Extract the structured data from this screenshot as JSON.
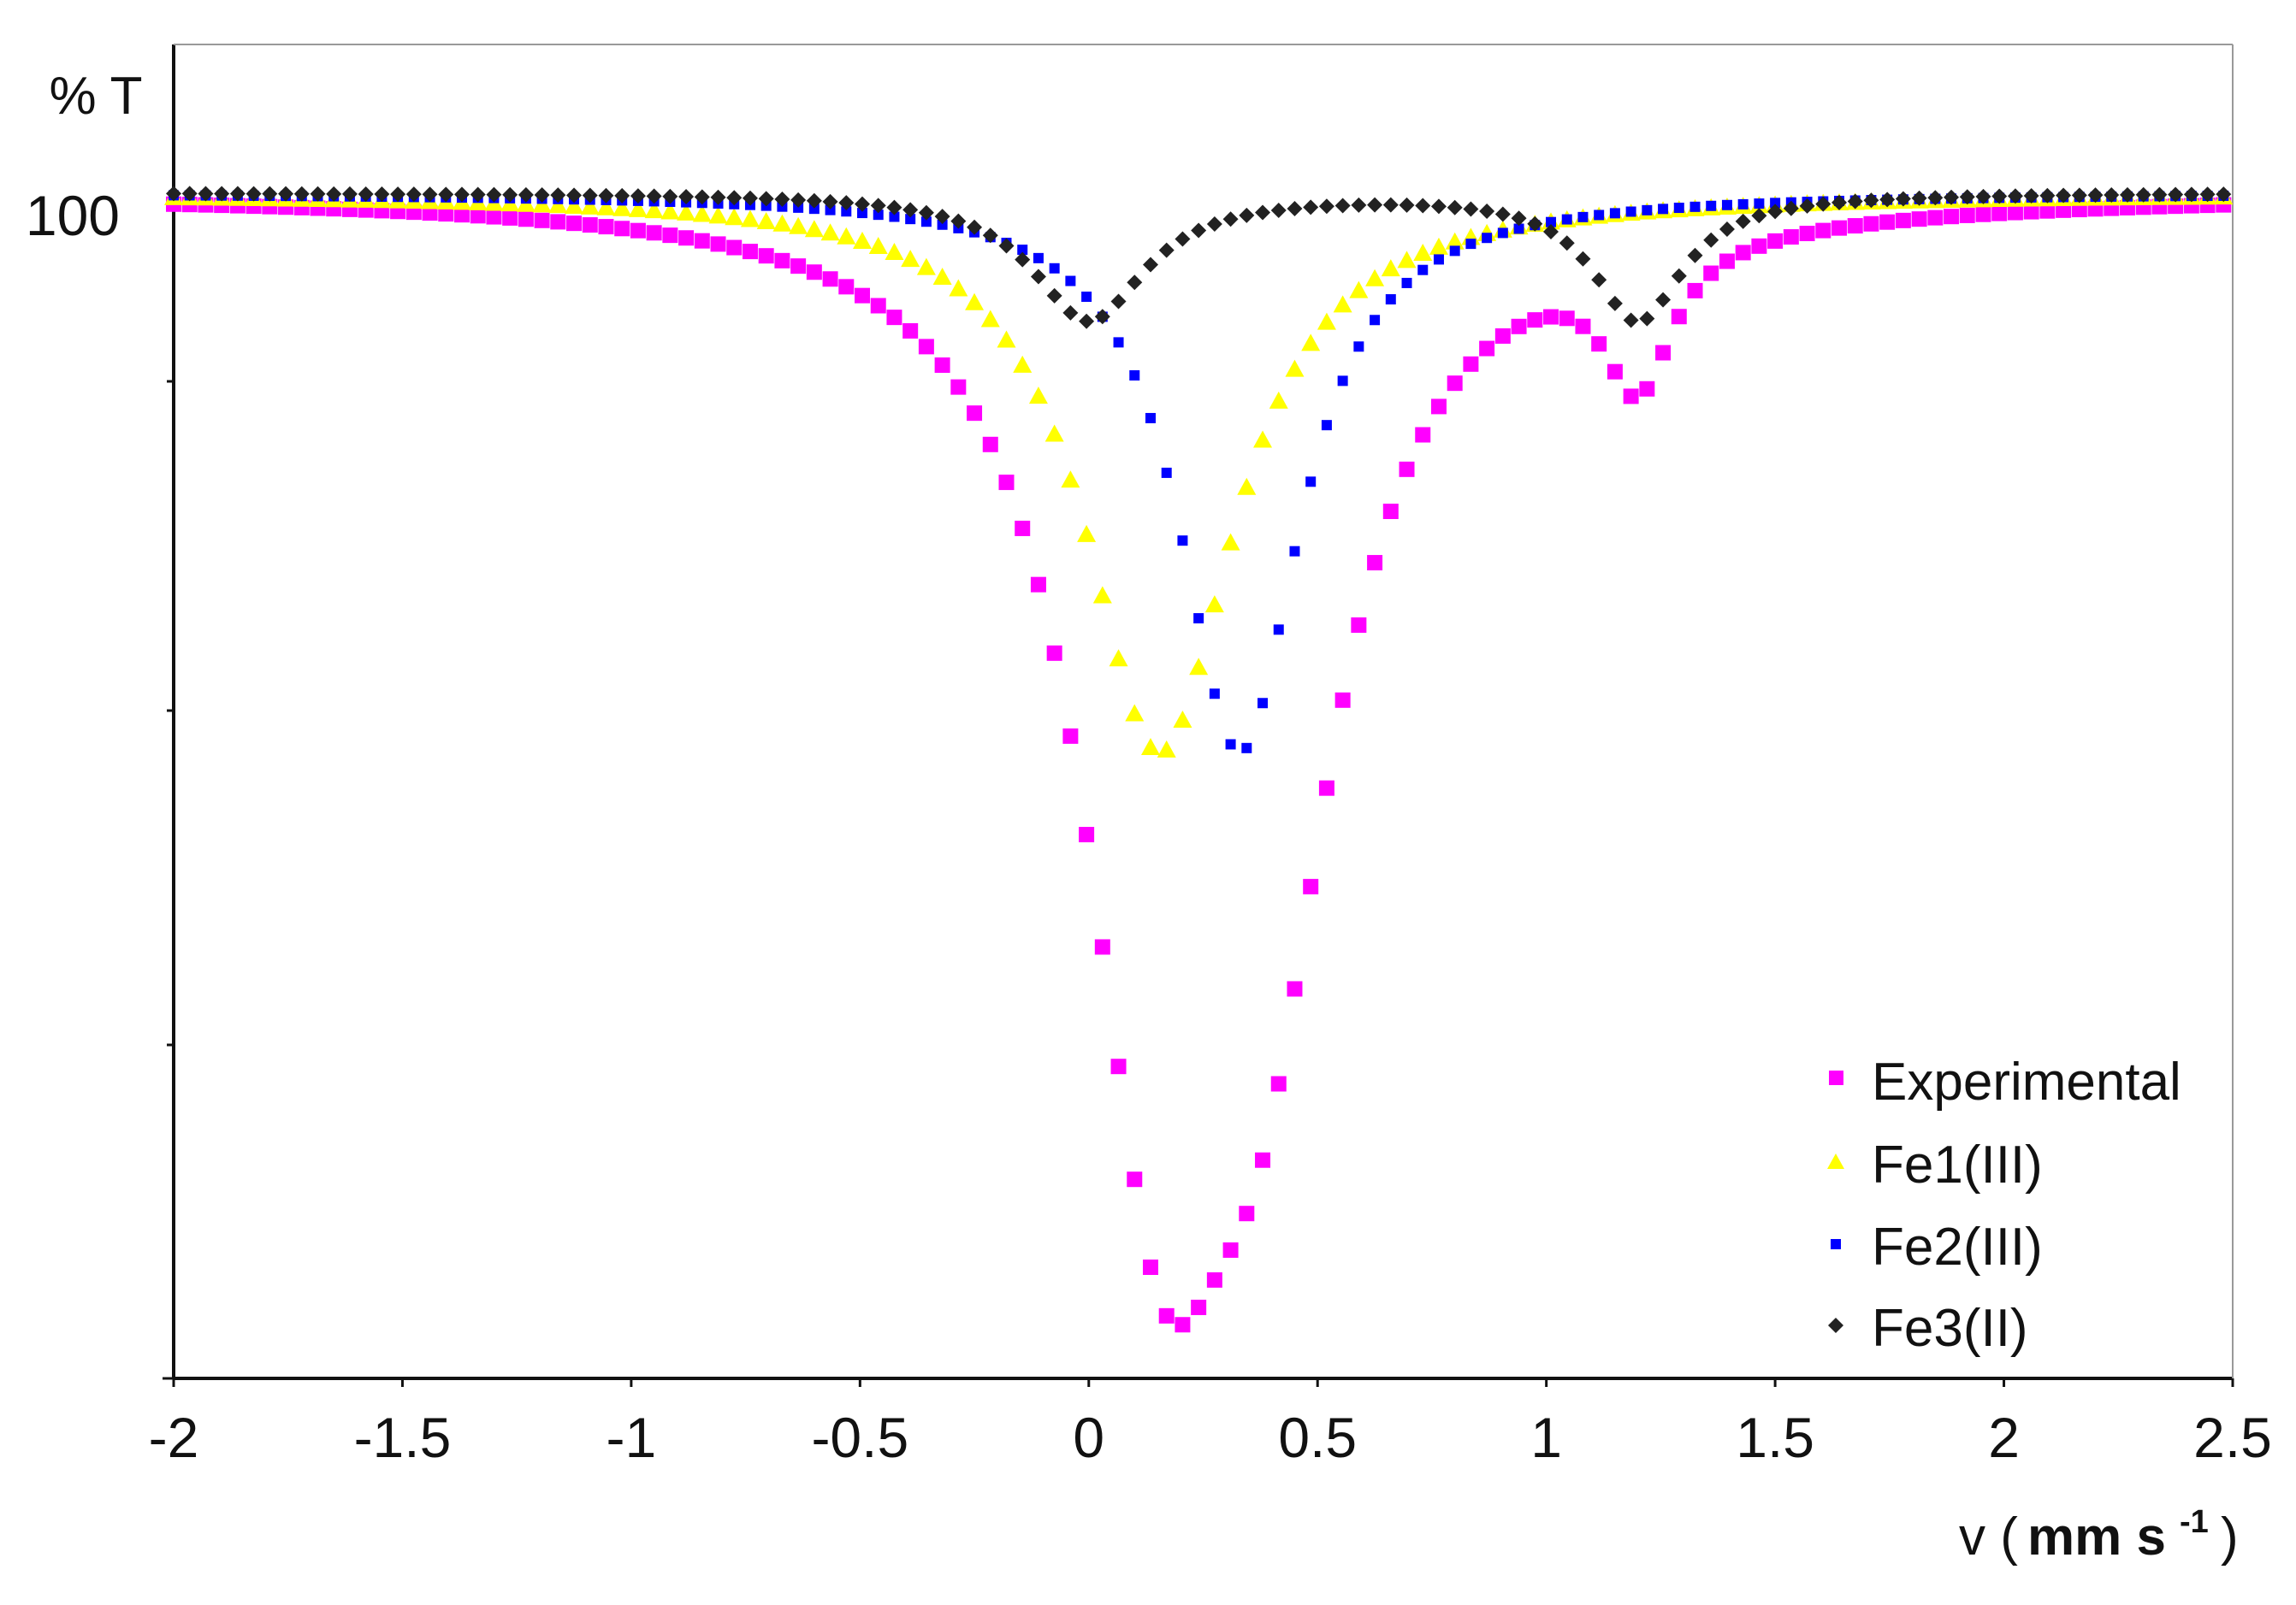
{
  "chart_data": {
    "type": "scatter",
    "title": "",
    "xlabel": "v ( mm s-1 )",
    "xlabel_parts": {
      "prefix": "v (",
      "unit": "mm s",
      "exponent": "-1",
      "suffix": ")"
    },
    "ylabel": "% T",
    "xlim": [
      -2,
      2.5
    ],
    "ylim": [
      60,
      105
    ],
    "grid": false,
    "legend_position": "bottom-right",
    "x_ticks": [
      "-2",
      "-1.5",
      "-1",
      "-0.5",
      "0",
      "0.5",
      "1",
      "1.5",
      "2",
      "2.5"
    ],
    "y_ticks": [
      "100"
    ],
    "series": [
      {
        "name": "Experimental",
        "color": "#ff00ff",
        "marker": "square",
        "params": {
          "baseline": 100,
          "peaks": [
            {
              "center": 0.155,
              "depth": 28.5,
              "hwhm": 0.2
            },
            {
              "center": 0.38,
              "depth": 20,
              "hwhm": 0.2
            },
            {
              "center": 1.2,
              "depth": 4.8,
              "hwhm": 0.09
            }
          ]
        }
      },
      {
        "name": "Fe1(III)",
        "color": "#ffff00",
        "marker": "triangle",
        "params": {
          "baseline": 100,
          "peaks": [
            {
              "center": 0.155,
              "depth": 18.9,
              "hwhm": 0.2
            }
          ]
        }
      },
      {
        "name": "Fe2(III)",
        "color": "#0000ff",
        "marker": "small-square",
        "params": {
          "baseline": 100,
          "peaks": [
            {
              "center": 0.33,
              "depth": 18.9,
              "hwhm": 0.16
            }
          ]
        }
      },
      {
        "name": "Fe3(II)",
        "color": "#222222",
        "marker": "diamond",
        "params": {
          "baseline": 100,
          "peaks": [
            {
              "center": 0.0,
              "depth": 4.3,
              "hwhm": 0.15
            },
            {
              "center": 1.2,
              "depth": 4.3,
              "hwhm": 0.12
            }
          ]
        }
      }
    ],
    "x_range_points": {
      "start": -2,
      "end": 2.5,
      "step": 0.035
    }
  }
}
